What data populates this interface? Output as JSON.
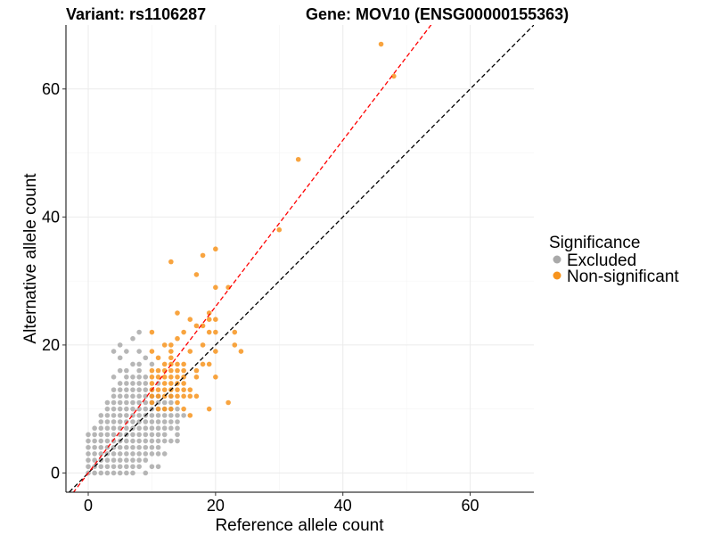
{
  "chart_data": {
    "type": "scatter",
    "title_left": "Variant: rs1106287",
    "title_right": "Gene: MOV10 (ENSG00000155363)",
    "xlabel": "Reference allele count",
    "ylabel": "Alternative allele count",
    "xlim": [
      -3.5,
      70
    ],
    "ylim": [
      -3,
      70
    ],
    "x_ticks": [
      0,
      20,
      40,
      60
    ],
    "y_ticks": [
      0,
      20,
      40,
      60
    ],
    "grid": true,
    "legend": {
      "title": "Significance",
      "position": "right",
      "entries": [
        {
          "label": "Excluded",
          "color": "#a9a9a9"
        },
        {
          "label": "Non-significant",
          "color": "#f7941d"
        }
      ]
    },
    "reference_lines": [
      {
        "slope": 1.0,
        "intercept": 0,
        "color": "#000000",
        "style": "dashed"
      },
      {
        "slope": 1.3,
        "intercept": 0,
        "color": "#ff0000",
        "style": "dashed"
      }
    ],
    "series": [
      {
        "name": "Excluded",
        "color": "#a9a9a9",
        "points": [
          [
            0,
            0
          ],
          [
            0,
            1
          ],
          [
            0,
            2
          ],
          [
            0,
            3
          ],
          [
            0,
            4
          ],
          [
            0,
            5
          ],
          [
            0,
            6
          ],
          [
            1,
            0
          ],
          [
            1,
            1
          ],
          [
            1,
            2
          ],
          [
            1,
            3
          ],
          [
            1,
            4
          ],
          [
            1,
            5
          ],
          [
            1,
            6
          ],
          [
            1,
            7
          ],
          [
            2,
            0
          ],
          [
            2,
            1
          ],
          [
            2,
            2
          ],
          [
            2,
            3
          ],
          [
            2,
            4
          ],
          [
            2,
            5
          ],
          [
            2,
            6
          ],
          [
            2,
            7
          ],
          [
            2,
            8
          ],
          [
            2,
            9
          ],
          [
            3,
            0
          ],
          [
            3,
            1
          ],
          [
            3,
            2
          ],
          [
            3,
            3
          ],
          [
            3,
            4
          ],
          [
            3,
            5
          ],
          [
            3,
            6
          ],
          [
            3,
            7
          ],
          [
            3,
            8
          ],
          [
            3,
            9
          ],
          [
            3,
            10
          ],
          [
            3,
            11
          ],
          [
            4,
            0
          ],
          [
            4,
            1
          ],
          [
            4,
            2
          ],
          [
            4,
            3
          ],
          [
            4,
            4
          ],
          [
            4,
            5
          ],
          [
            4,
            6
          ],
          [
            4,
            7
          ],
          [
            4,
            8
          ],
          [
            4,
            9
          ],
          [
            4,
            10
          ],
          [
            4,
            11
          ],
          [
            4,
            12
          ],
          [
            4,
            13
          ],
          [
            4,
            15
          ],
          [
            4,
            19
          ],
          [
            5,
            0
          ],
          [
            5,
            1
          ],
          [
            5,
            2
          ],
          [
            5,
            3
          ],
          [
            5,
            4
          ],
          [
            5,
            5
          ],
          [
            5,
            6
          ],
          [
            5,
            7
          ],
          [
            5,
            8
          ],
          [
            5,
            9
          ],
          [
            5,
            10
          ],
          [
            5,
            11
          ],
          [
            5,
            12
          ],
          [
            5,
            13
          ],
          [
            5,
            14
          ],
          [
            5,
            16
          ],
          [
            5,
            18
          ],
          [
            5,
            20
          ],
          [
            6,
            0
          ],
          [
            6,
            1
          ],
          [
            6,
            2
          ],
          [
            6,
            3
          ],
          [
            6,
            4
          ],
          [
            6,
            5
          ],
          [
            6,
            6
          ],
          [
            6,
            7
          ],
          [
            6,
            8
          ],
          [
            6,
            9
          ],
          [
            6,
            10
          ],
          [
            6,
            11
          ],
          [
            6,
            12
          ],
          [
            6,
            13
          ],
          [
            6,
            14
          ],
          [
            6,
            15
          ],
          [
            6,
            16
          ],
          [
            6,
            19
          ],
          [
            7,
            0
          ],
          [
            7,
            1
          ],
          [
            7,
            2
          ],
          [
            7,
            3
          ],
          [
            7,
            4
          ],
          [
            7,
            5
          ],
          [
            7,
            6
          ],
          [
            7,
            7
          ],
          [
            7,
            8
          ],
          [
            7,
            9
          ],
          [
            7,
            10
          ],
          [
            7,
            11
          ],
          [
            7,
            12
          ],
          [
            7,
            13
          ],
          [
            7,
            14
          ],
          [
            7,
            15
          ],
          [
            7,
            17
          ],
          [
            7,
            21
          ],
          [
            8,
            1
          ],
          [
            8,
            2
          ],
          [
            8,
            3
          ],
          [
            8,
            4
          ],
          [
            8,
            5
          ],
          [
            8,
            6
          ],
          [
            8,
            7
          ],
          [
            8,
            8
          ],
          [
            8,
            9
          ],
          [
            8,
            10
          ],
          [
            8,
            11
          ],
          [
            8,
            12
          ],
          [
            8,
            13
          ],
          [
            8,
            14
          ],
          [
            8,
            15
          ],
          [
            8,
            16
          ],
          [
            8,
            17
          ],
          [
            8,
            19
          ],
          [
            8,
            22
          ],
          [
            9,
            0
          ],
          [
            9,
            2
          ],
          [
            9,
            3
          ],
          [
            9,
            4
          ],
          [
            9,
            5
          ],
          [
            9,
            6
          ],
          [
            9,
            7
          ],
          [
            9,
            8
          ],
          [
            9,
            9
          ],
          [
            9,
            10
          ],
          [
            9,
            11
          ],
          [
            9,
            12
          ],
          [
            9,
            13
          ],
          [
            9,
            14
          ],
          [
            9,
            15
          ],
          [
            9,
            18
          ],
          [
            10,
            1
          ],
          [
            10,
            3
          ],
          [
            10,
            4
          ],
          [
            10,
            5
          ],
          [
            10,
            6
          ],
          [
            10,
            7
          ],
          [
            10,
            8
          ],
          [
            10,
            9
          ],
          [
            10,
            10
          ],
          [
            10,
            11
          ],
          [
            10,
            12
          ],
          [
            10,
            13
          ],
          [
            10,
            17
          ],
          [
            11,
            1
          ],
          [
            11,
            3
          ],
          [
            11,
            4
          ],
          [
            11,
            5
          ],
          [
            11,
            6
          ],
          [
            11,
            7
          ],
          [
            11,
            8
          ],
          [
            11,
            9
          ],
          [
            11,
            10
          ],
          [
            11,
            11
          ],
          [
            11,
            12
          ],
          [
            11,
            14
          ],
          [
            12,
            3
          ],
          [
            12,
            5
          ],
          [
            12,
            6
          ],
          [
            12,
            7
          ],
          [
            12,
            8
          ],
          [
            12,
            9
          ],
          [
            12,
            10
          ],
          [
            12,
            11
          ],
          [
            13,
            5
          ],
          [
            13,
            7
          ],
          [
            13,
            8
          ],
          [
            13,
            9
          ],
          [
            13,
            10
          ],
          [
            13,
            11
          ],
          [
            13,
            12
          ],
          [
            14,
            5
          ],
          [
            14,
            6
          ],
          [
            14,
            7
          ],
          [
            14,
            8
          ],
          [
            14,
            9
          ],
          [
            14,
            10
          ],
          [
            15,
            9
          ]
        ]
      },
      {
        "name": "Non-significant",
        "color": "#f7941d",
        "points": [
          [
            10,
            11
          ],
          [
            10,
            12
          ],
          [
            10,
            13
          ],
          [
            10,
            14
          ],
          [
            10,
            15
          ],
          [
            10,
            16
          ],
          [
            10,
            19
          ],
          [
            10,
            22
          ],
          [
            11,
            10
          ],
          [
            11,
            12
          ],
          [
            11,
            13
          ],
          [
            11,
            15
          ],
          [
            11,
            16
          ],
          [
            11,
            18
          ],
          [
            12,
            10
          ],
          [
            12,
            12
          ],
          [
            12,
            13
          ],
          [
            12,
            14
          ],
          [
            12,
            15
          ],
          [
            12,
            16
          ],
          [
            12,
            17
          ],
          [
            12,
            20
          ],
          [
            13,
            10
          ],
          [
            13,
            12
          ],
          [
            13,
            13
          ],
          [
            13,
            14
          ],
          [
            13,
            15
          ],
          [
            13,
            16
          ],
          [
            13,
            17
          ],
          [
            13,
            18
          ],
          [
            13,
            19
          ],
          [
            13,
            20
          ],
          [
            13,
            33
          ],
          [
            14,
            11
          ],
          [
            14,
            12
          ],
          [
            14,
            13
          ],
          [
            14,
            14
          ],
          [
            14,
            15
          ],
          [
            14,
            16
          ],
          [
            14,
            17
          ],
          [
            14,
            21
          ],
          [
            14,
            25
          ],
          [
            15,
            10
          ],
          [
            15,
            12
          ],
          [
            15,
            13
          ],
          [
            15,
            14
          ],
          [
            15,
            15
          ],
          [
            15,
            16
          ],
          [
            15,
            17
          ],
          [
            15,
            22
          ],
          [
            16,
            9
          ],
          [
            16,
            12
          ],
          [
            16,
            13
          ],
          [
            16,
            19
          ],
          [
            16,
            24
          ],
          [
            17,
            12
          ],
          [
            17,
            15
          ],
          [
            17,
            16
          ],
          [
            17,
            23
          ],
          [
            17,
            31
          ],
          [
            18,
            17
          ],
          [
            18,
            20
          ],
          [
            18,
            23
          ],
          [
            18,
            34
          ],
          [
            19,
            10
          ],
          [
            19,
            17
          ],
          [
            19,
            22
          ],
          [
            19,
            24
          ],
          [
            19,
            25
          ],
          [
            20,
            15
          ],
          [
            20,
            19
          ],
          [
            20,
            22
          ],
          [
            20,
            24
          ],
          [
            20,
            29
          ],
          [
            20,
            35
          ],
          [
            22,
            11
          ],
          [
            22,
            29
          ],
          [
            23,
            20
          ],
          [
            23,
            22
          ],
          [
            24,
            19
          ],
          [
            30,
            38
          ],
          [
            33,
            49
          ],
          [
            46,
            67
          ],
          [
            48,
            62
          ]
        ]
      }
    ]
  }
}
